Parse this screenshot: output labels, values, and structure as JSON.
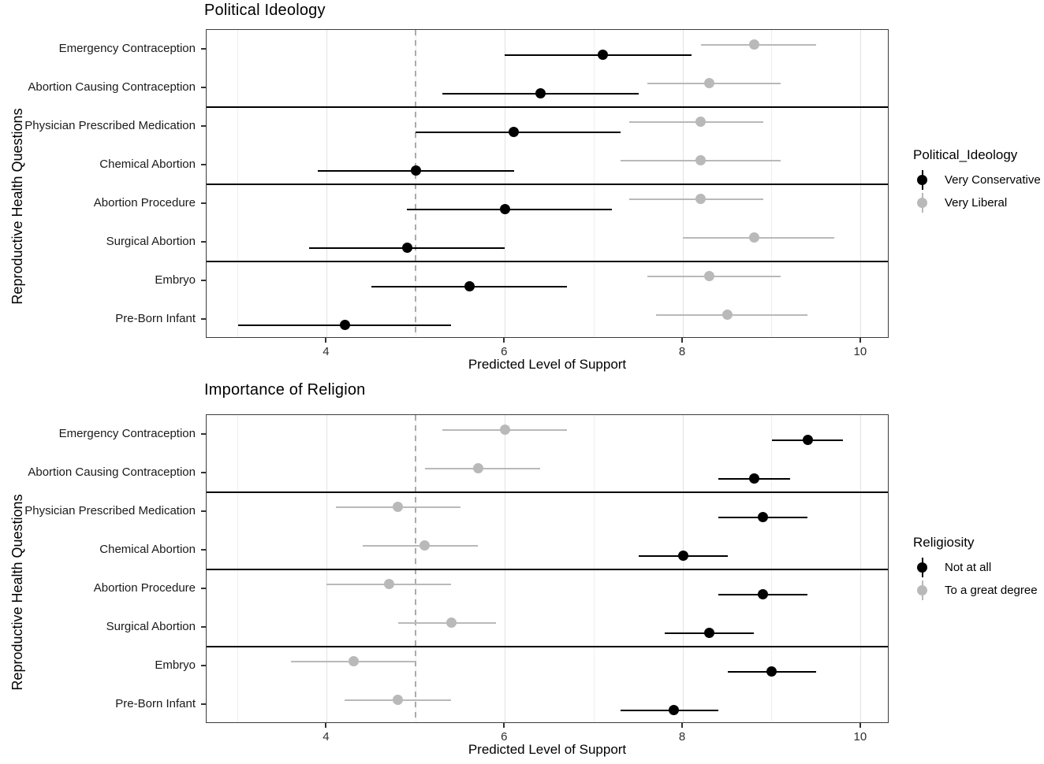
{
  "chart_data": [
    {
      "type": "scatter",
      "subtype": "dot-and-whisker (point estimate with confidence interval)",
      "title": "Political Ideology",
      "xlabel": "Predicted Level of Support",
      "ylabel": "Reproductive Health Questions",
      "xlim": [
        2.65,
        10.32
      ],
      "xticks": [
        4,
        6,
        8,
        10
      ],
      "x_gridlines": [
        3,
        4,
        5,
        6,
        7,
        8,
        9,
        10
      ],
      "reference_line_x": 5,
      "grid": true,
      "legend_position": "right",
      "legend_title": "Political_Ideology",
      "categories": [
        "Emergency Contraception",
        "Abortion Causing Contraception",
        "Physician Prescribed Medication",
        "Chemical Abortion",
        "Abortion Procedure",
        "Surgical Abortion",
        "Embryo",
        "Pre-Born Infant"
      ],
      "facet_separators_after_index": [
        1,
        3,
        5
      ],
      "series": [
        {
          "name": "Very Conservative",
          "color": "#000000",
          "estimates": [
            7.1,
            6.4,
            6.1,
            5.0,
            6.0,
            4.9,
            5.6,
            4.2
          ],
          "lower": [
            6.0,
            5.3,
            5.0,
            3.9,
            4.9,
            3.8,
            4.5,
            3.0
          ],
          "upper": [
            8.1,
            7.5,
            7.3,
            6.1,
            7.2,
            6.0,
            6.7,
            5.4
          ]
        },
        {
          "name": "Very Liberal",
          "color": "#b9b9b9",
          "estimates": [
            8.8,
            8.3,
            8.2,
            8.2,
            8.2,
            8.8,
            8.3,
            8.5
          ],
          "lower": [
            8.2,
            7.6,
            7.4,
            7.3,
            7.4,
            8.0,
            7.6,
            7.7
          ],
          "upper": [
            9.5,
            9.1,
            8.9,
            9.1,
            8.9,
            9.7,
            9.1,
            9.4
          ]
        }
      ]
    },
    {
      "type": "scatter",
      "subtype": "dot-and-whisker (point estimate with confidence interval)",
      "title": "Importance of Religion",
      "xlabel": "Predicted Level of Support",
      "ylabel": "Reproductive Health Questions",
      "xlim": [
        2.65,
        10.32
      ],
      "xticks": [
        4,
        6,
        8,
        10
      ],
      "x_gridlines": [
        3,
        4,
        5,
        6,
        7,
        8,
        9,
        10
      ],
      "reference_line_x": 5,
      "grid": true,
      "legend_position": "right",
      "legend_title": "Religiosity",
      "categories": [
        "Emergency Contraception",
        "Abortion Causing Contraception",
        "Physician Prescribed Medication",
        "Chemical Abortion",
        "Abortion Procedure",
        "Surgical Abortion",
        "Embryo",
        "Pre-Born Infant"
      ],
      "facet_separators_after_index": [
        1,
        3,
        5
      ],
      "series": [
        {
          "name": "Not at all",
          "color": "#000000",
          "estimates": [
            9.4,
            8.8,
            8.9,
            8.0,
            8.9,
            8.3,
            9.0,
            7.9
          ],
          "lower": [
            9.0,
            8.4,
            8.4,
            7.5,
            8.4,
            7.8,
            8.5,
            7.3
          ],
          "upper": [
            9.8,
            9.2,
            9.4,
            8.5,
            9.4,
            8.8,
            9.5,
            8.4
          ]
        },
        {
          "name": "To a great degree",
          "color": "#b9b9b9",
          "estimates": [
            6.0,
            5.7,
            4.8,
            5.1,
            4.7,
            5.4,
            4.3,
            4.8
          ],
          "lower": [
            5.3,
            5.1,
            4.1,
            4.4,
            4.0,
            4.8,
            3.6,
            4.2
          ],
          "upper": [
            6.7,
            6.4,
            5.5,
            5.7,
            5.4,
            5.9,
            5.0,
            5.4
          ]
        }
      ]
    }
  ]
}
